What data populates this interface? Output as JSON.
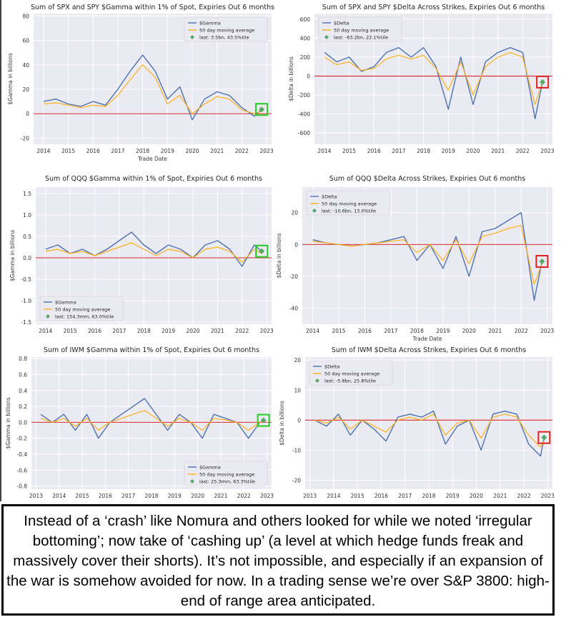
{
  "caption": {
    "text": "Instead of a ‘crash’ like Nomura and others looked for while we noted ‘irregular bottoming’; now take of ‘cashing up’ (a level at which hedge funds freak and massively cover their shorts). It’s not impossible, and especially if an expansion of the war is somehow avoided for now. In a trading sense we’re over S&P 3800: high-end of range area anticipated."
  },
  "chart_data": [
    {
      "id": "spx_gamma",
      "type": "line",
      "title": "Sum of SPX and SPY $Gamma within 1% of Spot, Expiries Out 6 months",
      "xlabel": "Trade Date",
      "ylabel": "$Gamma in billions",
      "xlim": [
        2013.6,
        2023.2
      ],
      "ylim": [
        -25,
        82
      ],
      "xticks": [
        2014,
        2015,
        2016,
        2017,
        2018,
        2019,
        2020,
        2021,
        2022,
        2023
      ],
      "yticks": [
        -20,
        0,
        20,
        40,
        60,
        80
      ],
      "legend": [
        "$Gamma",
        "50 day moving average",
        "last: 3.5bn, 43.5%tile"
      ],
      "legend_position": "top-right",
      "series": [
        {
          "name": "$Gamma",
          "x": [
            2014,
            2014.5,
            2015,
            2015.5,
            2016,
            2016.5,
            2017,
            2017.5,
            2018,
            2018.5,
            2019,
            2019.5,
            2020,
            2020.5,
            2021,
            2021.5,
            2022,
            2022.5,
            2022.8
          ],
          "y": [
            10,
            12,
            8,
            6,
            10,
            7,
            20,
            35,
            48,
            35,
            12,
            22,
            -5,
            12,
            18,
            15,
            5,
            -2,
            3.5
          ]
        },
        {
          "name": "50 day moving average",
          "x": [
            2014,
            2014.5,
            2015,
            2015.5,
            2016,
            2016.5,
            2017,
            2017.5,
            2018,
            2018.5,
            2019,
            2019.5,
            2020,
            2020.5,
            2021,
            2021.5,
            2022,
            2022.5,
            2022.8
          ],
          "y": [
            8,
            9,
            7,
            5,
            7,
            6,
            15,
            28,
            40,
            30,
            8,
            15,
            0,
            8,
            14,
            12,
            3,
            0,
            2
          ]
        }
      ],
      "last": {
        "x": 2022.8,
        "y": 3.5,
        "label": "last: 3.5bn, 43.5%tile"
      },
      "highlight_box": "green"
    },
    {
      "id": "spx_delta",
      "type": "line",
      "title": "Sum of SPX and SPY $Delta Across Strikes, Expiries Out 6 months",
      "xlabel": "",
      "ylabel": "$Delta in billions",
      "xlim": [
        2013.6,
        2023.2
      ],
      "ylim": [
        -720,
        660
      ],
      "xticks": [
        2014,
        2015,
        2016,
        2017,
        2018,
        2019,
        2020,
        2021,
        2022,
        2023
      ],
      "yticks": [
        -600,
        -400,
        -200,
        0,
        200,
        400,
        600
      ],
      "legend": [
        "$Delta",
        "50 day moving average",
        "last: -63.2bn, 22.1%tile"
      ],
      "legend_position": "top-left",
      "series": [
        {
          "name": "$Delta",
          "x": [
            2014,
            2014.5,
            2015,
            2015.5,
            2016,
            2016.5,
            2017,
            2017.5,
            2018,
            2018.5,
            2019,
            2019.5,
            2020,
            2020.5,
            2021,
            2021.5,
            2022,
            2022.5,
            2022.8
          ],
          "y": [
            250,
            150,
            200,
            50,
            100,
            250,
            300,
            200,
            300,
            100,
            -350,
            200,
            -300,
            150,
            250,
            300,
            250,
            -450,
            -63
          ]
        },
        {
          "name": "50 day moving average",
          "x": [
            2014,
            2014.5,
            2015,
            2015.5,
            2016,
            2016.5,
            2017,
            2017.5,
            2018,
            2018.5,
            2019,
            2019.5,
            2020,
            2020.5,
            2021,
            2021.5,
            2022,
            2022.5,
            2022.8
          ],
          "y": [
            200,
            120,
            150,
            60,
            80,
            180,
            220,
            180,
            220,
            80,
            -150,
            150,
            -200,
            100,
            200,
            250,
            200,
            -300,
            -60
          ]
        }
      ],
      "last": {
        "x": 2022.8,
        "y": -63.2,
        "label": "last: -63.2bn, 22.1%tile"
      },
      "highlight_box": "red"
    },
    {
      "id": "qqq_gamma",
      "type": "line",
      "title": "Sum of QQQ $Gamma within 1% of Spot, Expiries Out 6 months",
      "xlabel": "",
      "ylabel": "$Gamma in billions",
      "xlim": [
        2013.6,
        2023.2
      ],
      "ylim": [
        -1.55,
        1.65
      ],
      "xticks": [
        2014,
        2015,
        2016,
        2017,
        2018,
        2019,
        2020,
        2021,
        2022,
        2023
      ],
      "yticks": [
        -1.5,
        -1.0,
        -0.5,
        0.0,
        0.5,
        1.0,
        1.5
      ],
      "legend": [
        "$Gamma",
        "50 day moving average",
        "last: 154.3mm, 63.0%tile"
      ],
      "legend_position": "bottom-left",
      "series": [
        {
          "name": "$Gamma",
          "x": [
            2014,
            2014.5,
            2015,
            2015.5,
            2016,
            2016.5,
            2017,
            2017.5,
            2018,
            2018.5,
            2019,
            2019.5,
            2020,
            2020.5,
            2021,
            2021.5,
            2022,
            2022.5,
            2022.8
          ],
          "y": [
            0.2,
            0.3,
            0.1,
            0.2,
            0.05,
            0.2,
            0.4,
            0.6,
            0.3,
            0.1,
            0.3,
            0.2,
            0.0,
            0.3,
            0.4,
            0.2,
            -0.2,
            0.3,
            0.15
          ]
        },
        {
          "name": "50 day moving average",
          "x": [
            2014,
            2014.5,
            2015,
            2015.5,
            2016,
            2016.5,
            2017,
            2017.5,
            2018,
            2018.5,
            2019,
            2019.5,
            2020,
            2020.5,
            2021,
            2021.5,
            2022,
            2022.5,
            2022.8
          ],
          "y": [
            0.15,
            0.2,
            0.1,
            0.15,
            0.05,
            0.15,
            0.25,
            0.35,
            0.2,
            0.05,
            0.2,
            0.15,
            0.0,
            0.2,
            0.25,
            0.15,
            -0.1,
            0.2,
            0.1
          ]
        }
      ],
      "last": {
        "x": 2022.8,
        "y": 0.154,
        "label": "last: 154.3mm, 63.0%tile"
      },
      "highlight_box": "green"
    },
    {
      "id": "qqq_delta",
      "type": "line",
      "title": "Sum of QQQ $Delta Across Strikes, Expiries Out 6 months",
      "xlabel": "Trade Date",
      "ylabel": "$Delta in billions",
      "xlim": [
        2013.6,
        2023.2
      ],
      "ylim": [
        -50,
        36
      ],
      "xticks": [
        2014,
        2015,
        2016,
        2017,
        2018,
        2019,
        2020,
        2021,
        2022,
        2023
      ],
      "yticks": [
        -40,
        -20,
        0,
        20
      ],
      "legend": [
        "$Delta",
        "50 day moving average",
        "last: -10.6bn, 13.0%tile"
      ],
      "legend_position": "top-left",
      "series": [
        {
          "name": "$Delta",
          "x": [
            2014,
            2014.5,
            2015,
            2015.5,
            2016,
            2016.5,
            2017,
            2017.5,
            2018,
            2018.5,
            2019,
            2019.5,
            2020,
            2020.5,
            2021,
            2021.5,
            2022,
            2022.5,
            2022.8
          ],
          "y": [
            3,
            1,
            0,
            -1,
            0,
            1,
            3,
            5,
            -10,
            0,
            -15,
            5,
            -20,
            8,
            10,
            15,
            20,
            -35,
            -10.6
          ]
        },
        {
          "name": "50 day moving average",
          "x": [
            2014,
            2014.5,
            2015,
            2015.5,
            2016,
            2016.5,
            2017,
            2017.5,
            2018,
            2018.5,
            2019,
            2019.5,
            2020,
            2020.5,
            2021,
            2021.5,
            2022,
            2022.5,
            2022.8
          ],
          "y": [
            2,
            1,
            0,
            -1,
            0,
            1,
            2,
            3,
            -5,
            0,
            -10,
            3,
            -12,
            5,
            7,
            10,
            12,
            -25,
            -12
          ]
        }
      ],
      "last": {
        "x": 2022.8,
        "y": -10.6,
        "label": "last: -10.6bn, 13.0%tile"
      },
      "highlight_box": "red"
    },
    {
      "id": "iwm_gamma",
      "type": "line",
      "title": "Sum of IWM $Gamma within 1% of Spot, Expiries Out 6 months",
      "xlabel": "",
      "ylabel": "$Gamma in billions",
      "xlim": [
        2012.8,
        2023.2
      ],
      "ylim": [
        -0.84,
        0.82
      ],
      "xticks": [
        2013,
        2014,
        2015,
        2016,
        2017,
        2018,
        2019,
        2020,
        2021,
        2022,
        2023
      ],
      "yticks": [
        -0.8,
        -0.6,
        -0.4,
        -0.2,
        0.0,
        0.2,
        0.4,
        0.6,
        0.8
      ],
      "legend": [
        "$Gamma",
        "50 day moving average",
        "last: 25.3mm, 63.3%tile"
      ],
      "legend_position": "bottom-right",
      "series": [
        {
          "name": "$Gamma",
          "x": [
            2013.2,
            2013.7,
            2014.2,
            2014.7,
            2015.2,
            2015.7,
            2016.2,
            2016.7,
            2017.2,
            2017.7,
            2018.2,
            2018.7,
            2019.2,
            2019.7,
            2020.2,
            2020.7,
            2021.2,
            2021.7,
            2022.2,
            2022.7,
            2022.85
          ],
          "y": [
            0.1,
            0.0,
            0.1,
            -0.1,
            0.1,
            -0.2,
            0.0,
            0.1,
            0.2,
            0.3,
            0.1,
            -0.1,
            0.1,
            0.0,
            -0.2,
            0.1,
            0.05,
            0.0,
            -0.2,
            0.0,
            0.025
          ]
        },
        {
          "name": "50 day moving average",
          "x": [
            2013.2,
            2013.7,
            2014.2,
            2014.7,
            2015.2,
            2015.7,
            2016.2,
            2016.7,
            2017.2,
            2017.7,
            2018.2,
            2018.7,
            2019.2,
            2019.7,
            2020.2,
            2020.7,
            2021.2,
            2021.7,
            2022.2,
            2022.7,
            2022.85
          ],
          "y": [
            0.05,
            0.0,
            0.05,
            -0.05,
            0.05,
            -0.1,
            0.0,
            0.05,
            0.1,
            0.15,
            0.05,
            -0.05,
            0.05,
            0.0,
            -0.1,
            0.05,
            0.03,
            0.0,
            -0.1,
            0.0,
            0.02
          ]
        }
      ],
      "last": {
        "x": 2022.85,
        "y": 0.025,
        "label": "last: 25.3mm, 63.3%tile"
      },
      "highlight_box": "green"
    },
    {
      "id": "iwm_delta",
      "type": "line",
      "title": "Sum of IWM $Delta Across Strikes, Expiries Out 6 months",
      "xlabel": "",
      "ylabel": "$Delta in billions",
      "xlim": [
        2012.8,
        2023.2
      ],
      "ylim": [
        -23,
        21
      ],
      "xticks": [
        2013,
        2014,
        2015,
        2016,
        2017,
        2018,
        2019,
        2020,
        2021,
        2022,
        2023
      ],
      "yticks": [
        -20,
        -10,
        0,
        10,
        20
      ],
      "legend": [
        "$Delta",
        "50 day moving average",
        "last: -5.8bn, 25.8%tile"
      ],
      "legend_position": "top-left",
      "series": [
        {
          "name": "$Delta",
          "x": [
            2013.2,
            2013.7,
            2014.2,
            2014.7,
            2015.2,
            2015.7,
            2016.2,
            2016.7,
            2017.2,
            2017.7,
            2018.2,
            2018.7,
            2019.2,
            2019.7,
            2020.2,
            2020.7,
            2021.2,
            2021.7,
            2022.2,
            2022.7,
            2022.85
          ],
          "y": [
            0,
            -2,
            2,
            -5,
            0,
            -3,
            -7,
            1,
            2,
            1,
            3,
            -8,
            -2,
            0,
            -10,
            2,
            3,
            2,
            -8,
            -12,
            -5.8
          ]
        },
        {
          "name": "50 day moving average",
          "x": [
            2013.2,
            2013.7,
            2014.2,
            2014.7,
            2015.2,
            2015.7,
            2016.2,
            2016.7,
            2017.2,
            2017.7,
            2018.2,
            2018.7,
            2019.2,
            2019.7,
            2020.2,
            2020.7,
            2021.2,
            2021.7,
            2022.2,
            2022.7,
            2022.85
          ],
          "y": [
            0,
            -1,
            1,
            -3,
            0,
            -2,
            -4,
            0,
            1,
            0,
            2,
            -5,
            -1,
            0,
            -6,
            1,
            2,
            1,
            -5,
            -9,
            -7
          ]
        }
      ],
      "last": {
        "x": 2022.85,
        "y": -5.8,
        "label": "last: -5.8bn, 25.8%tile"
      },
      "highlight_box": "red"
    }
  ]
}
